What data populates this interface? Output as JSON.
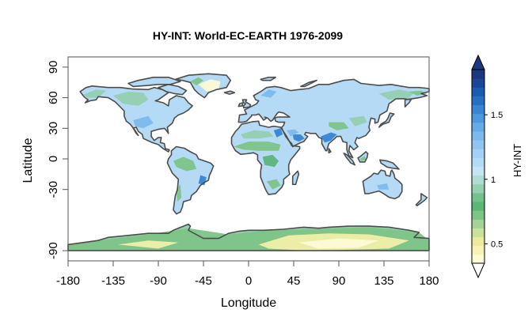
{
  "title": "HY-INT: World-EC-EARTH 1976-2099",
  "x_axis": {
    "label": "Longitude",
    "ticks": [
      -180,
      -135,
      -90,
      -45,
      0,
      45,
      90,
      135,
      180
    ],
    "tick_labels": [
      "-180",
      "-135",
      "-90",
      "-45",
      "0",
      "45",
      "90",
      "135",
      "180"
    ],
    "range": [
      -180,
      180
    ]
  },
  "y_axis": {
    "label": "Latitude",
    "ticks": [
      -90,
      -30,
      0,
      30,
      60,
      90
    ],
    "tick_labels": [
      "-90",
      "-30",
      "0",
      "30",
      "60",
      "90"
    ],
    "range": [
      -100,
      100
    ]
  },
  "colorbar": {
    "label": "HY-INT",
    "ticks": [
      0.5,
      1,
      1.5
    ],
    "tick_labels": [
      "0.5",
      "1",
      "1.5"
    ],
    "range": [
      0.35,
      1.85
    ],
    "extends": "both",
    "colors": [
      "#fdfbd6",
      "#f7f3b3",
      "#eaeb9c",
      "#cbe19a",
      "#a5d395",
      "#7dc487",
      "#5db57a",
      "#75c08f",
      "#95d0b0",
      "#b0dcd3",
      "#c5e4f5",
      "#b4daf5",
      "#a3d0f3",
      "#8fc5f0",
      "#7cbaed",
      "#65abe6",
      "#4d99de",
      "#3785d3",
      "#2670c4",
      "#1a5bb3",
      "#1a4795",
      "#1c3780"
    ]
  },
  "map_colors": {
    "ocean": "#ffffff",
    "coastline": "#4d4d4d",
    "land_base": "#b4daf5",
    "land_low": "#c5e4f5",
    "green": "#7dc487",
    "dark_green": "#5db57a",
    "teal": "#95d0b0",
    "blue": "#7cbaed",
    "deep_blue": "#3785d3",
    "yellow": "#f2efa8",
    "pale_yellow": "#fdfbd6"
  }
}
